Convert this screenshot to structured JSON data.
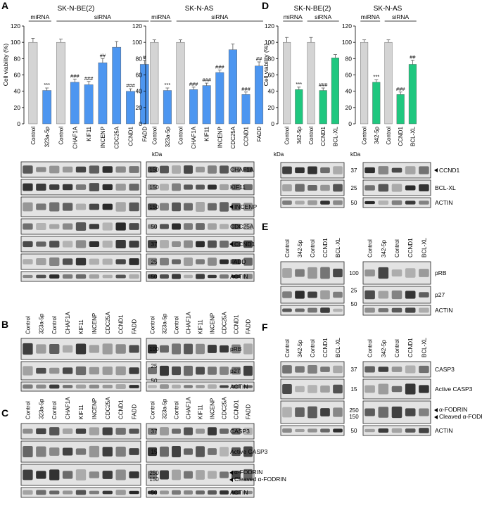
{
  "labels": {
    "panel_a": "A",
    "panel_b": "B",
    "panel_c": "C",
    "panel_d": "D",
    "panel_e": "E",
    "panel_f": "F",
    "cell_be2": "SK-N-BE(2)",
    "cell_as": "SK-N-AS",
    "mirna": "miRNA",
    "sirna": "siRNA",
    "kda": "kDa",
    "ylabel": "Cell viability (%)"
  },
  "chart_data": [
    {
      "type": "bar",
      "panel": "A",
      "cell_line": "SK-N-BE(2)",
      "categories": [
        "Control",
        "323a-5p",
        "Control",
        "CHAF1A",
        "KIF11",
        "INCENP",
        "CDC25A",
        "CCND1",
        "FADD"
      ],
      "values": [
        100,
        41,
        100,
        51,
        48,
        75,
        94,
        40,
        73
      ],
      "errors": [
        5,
        3,
        4,
        4,
        4,
        5,
        7,
        3,
        5
      ],
      "significance": [
        "",
        "***",
        "",
        "###",
        "###",
        "##",
        "",
        "###",
        "#"
      ],
      "colors": [
        "#d4d4d4",
        "#4d96f0",
        "#d4d4d4",
        "#4d96f0",
        "#4d96f0",
        "#4d96f0",
        "#4d96f0",
        "#4d96f0",
        "#4d96f0"
      ],
      "ylabel": "Cell viability (%)",
      "ylim": [
        0,
        120
      ],
      "yticks": [
        0,
        20,
        40,
        60,
        80,
        100,
        120
      ]
    },
    {
      "type": "bar",
      "panel": "A",
      "cell_line": "SK-N-AS",
      "categories": [
        "Control",
        "323a-5p",
        "Control",
        "CHAF1A",
        "KIF11",
        "INCENP",
        "CDC25A",
        "CCND1",
        "FADD"
      ],
      "values": [
        100,
        41,
        100,
        42,
        47,
        63,
        91,
        36,
        71
      ],
      "errors": [
        3,
        3,
        3,
        3,
        3,
        3,
        7,
        3,
        5
      ],
      "significance": [
        "",
        "***",
        "",
        "###",
        "###",
        "###",
        "",
        "###",
        "##"
      ],
      "colors": [
        "#d4d4d4",
        "#4d96f0",
        "#d4d4d4",
        "#4d96f0",
        "#4d96f0",
        "#4d96f0",
        "#4d96f0",
        "#4d96f0",
        "#4d96f0"
      ],
      "ylim": [
        0,
        120
      ],
      "yticks": [
        0,
        20,
        40,
        60,
        80,
        100,
        120
      ]
    },
    {
      "type": "bar",
      "panel": "D",
      "cell_line": "SK-N-BE(2)",
      "categories": [
        "Control",
        "342-5p",
        "Control",
        "CCND1",
        "BCL-XL"
      ],
      "values": [
        100,
        42,
        100,
        41,
        81
      ],
      "errors": [
        6,
        3,
        6,
        3,
        4
      ],
      "significance": [
        "",
        "***",
        "",
        "###",
        ""
      ],
      "colors": [
        "#d4d4d4",
        "#1fc77f",
        "#d4d4d4",
        "#1fc77f",
        "#1fc77f"
      ],
      "ylabel": "Cell viability (%)",
      "ylim": [
        0,
        120
      ],
      "yticks": [
        0,
        20,
        40,
        60,
        80,
        100,
        120
      ]
    },
    {
      "type": "bar",
      "panel": "D",
      "cell_line": "SK-N-AS",
      "categories": [
        "Control",
        "342-5p",
        "Control",
        "CCND1",
        "BCL-XL"
      ],
      "values": [
        100,
        51,
        100,
        36,
        73
      ],
      "errors": [
        3,
        3,
        3,
        3,
        5
      ],
      "significance": [
        "",
        "***",
        "",
        "###",
        "##"
      ],
      "colors": [
        "#d4d4d4",
        "#1fc77f",
        "#d4d4d4",
        "#1fc77f",
        "#1fc77f"
      ],
      "ylim": [
        0,
        120
      ],
      "yticks": [
        0,
        20,
        40,
        60,
        80,
        100,
        120
      ]
    }
  ],
  "blots": {
    "lanes_a": [
      "Control",
      "323a-5p",
      "Control",
      "CHAF1A",
      "KIF11",
      "INCENP",
      "CDC25A",
      "CCND1",
      "FADD"
    ],
    "lanes_d": [
      "Control",
      "342-5p",
      "Control",
      "CCND1",
      "BCL-XL"
    ],
    "a_rows": [
      {
        "label": "CHAF1A",
        "kda": "150",
        "arrow": false
      },
      {
        "label": "KIF11",
        "kda": "150",
        "arrow": false
      },
      {
        "label": "INCENP",
        "kda": "150",
        "arrow": true
      },
      {
        "label": "CDC25A",
        "kda": "50",
        "arrow": false
      },
      {
        "label": "CCND1",
        "kda": "37",
        "arrow": true
      },
      {
        "label": "FADD",
        "kda": "25",
        "arrow": false
      },
      {
        "label": "ACTIN",
        "kda": "50",
        "arrow": false
      }
    ],
    "b_rows": [
      {
        "label": "pRB",
        "kda": "100"
      },
      {
        "label": "p27",
        "kda": "25",
        "kda2": "50"
      },
      {
        "label": "ACTIN",
        "kda": ""
      }
    ],
    "c_rows": [
      {
        "label": "CASP3",
        "kda": "37"
      },
      {
        "label": "Active CASP3",
        "kda": "15"
      },
      {
        "label": "α-FODRIN",
        "label2": "Cleaved α-FODRIN",
        "kda": "250",
        "kda2": "150"
      },
      {
        "label": "ACTIN",
        "kda": "50"
      }
    ],
    "d_rows": [
      {
        "label": "CCND1",
        "kda": "37",
        "arrow": true
      },
      {
        "label": "BCL-XL",
        "kda": "25"
      },
      {
        "label": "ACTIN",
        "kda": "50"
      }
    ],
    "e_rows": [
      {
        "label": "pRB",
        "kda": "100"
      },
      {
        "label": "p27",
        "kda": "25",
        "kda2": "50"
      },
      {
        "label": "ACTIN",
        "kda": ""
      }
    ],
    "f_rows": [
      {
        "label": "CASP3",
        "kda": "37"
      },
      {
        "label": "Active CASP3",
        "kda": "15"
      },
      {
        "label": "α-FODRIN",
        "label2": "Cleaved α-FODRIN",
        "kda": "250",
        "kda2": "150"
      },
      {
        "label": "ACTIN",
        "kda": "50"
      }
    ]
  }
}
